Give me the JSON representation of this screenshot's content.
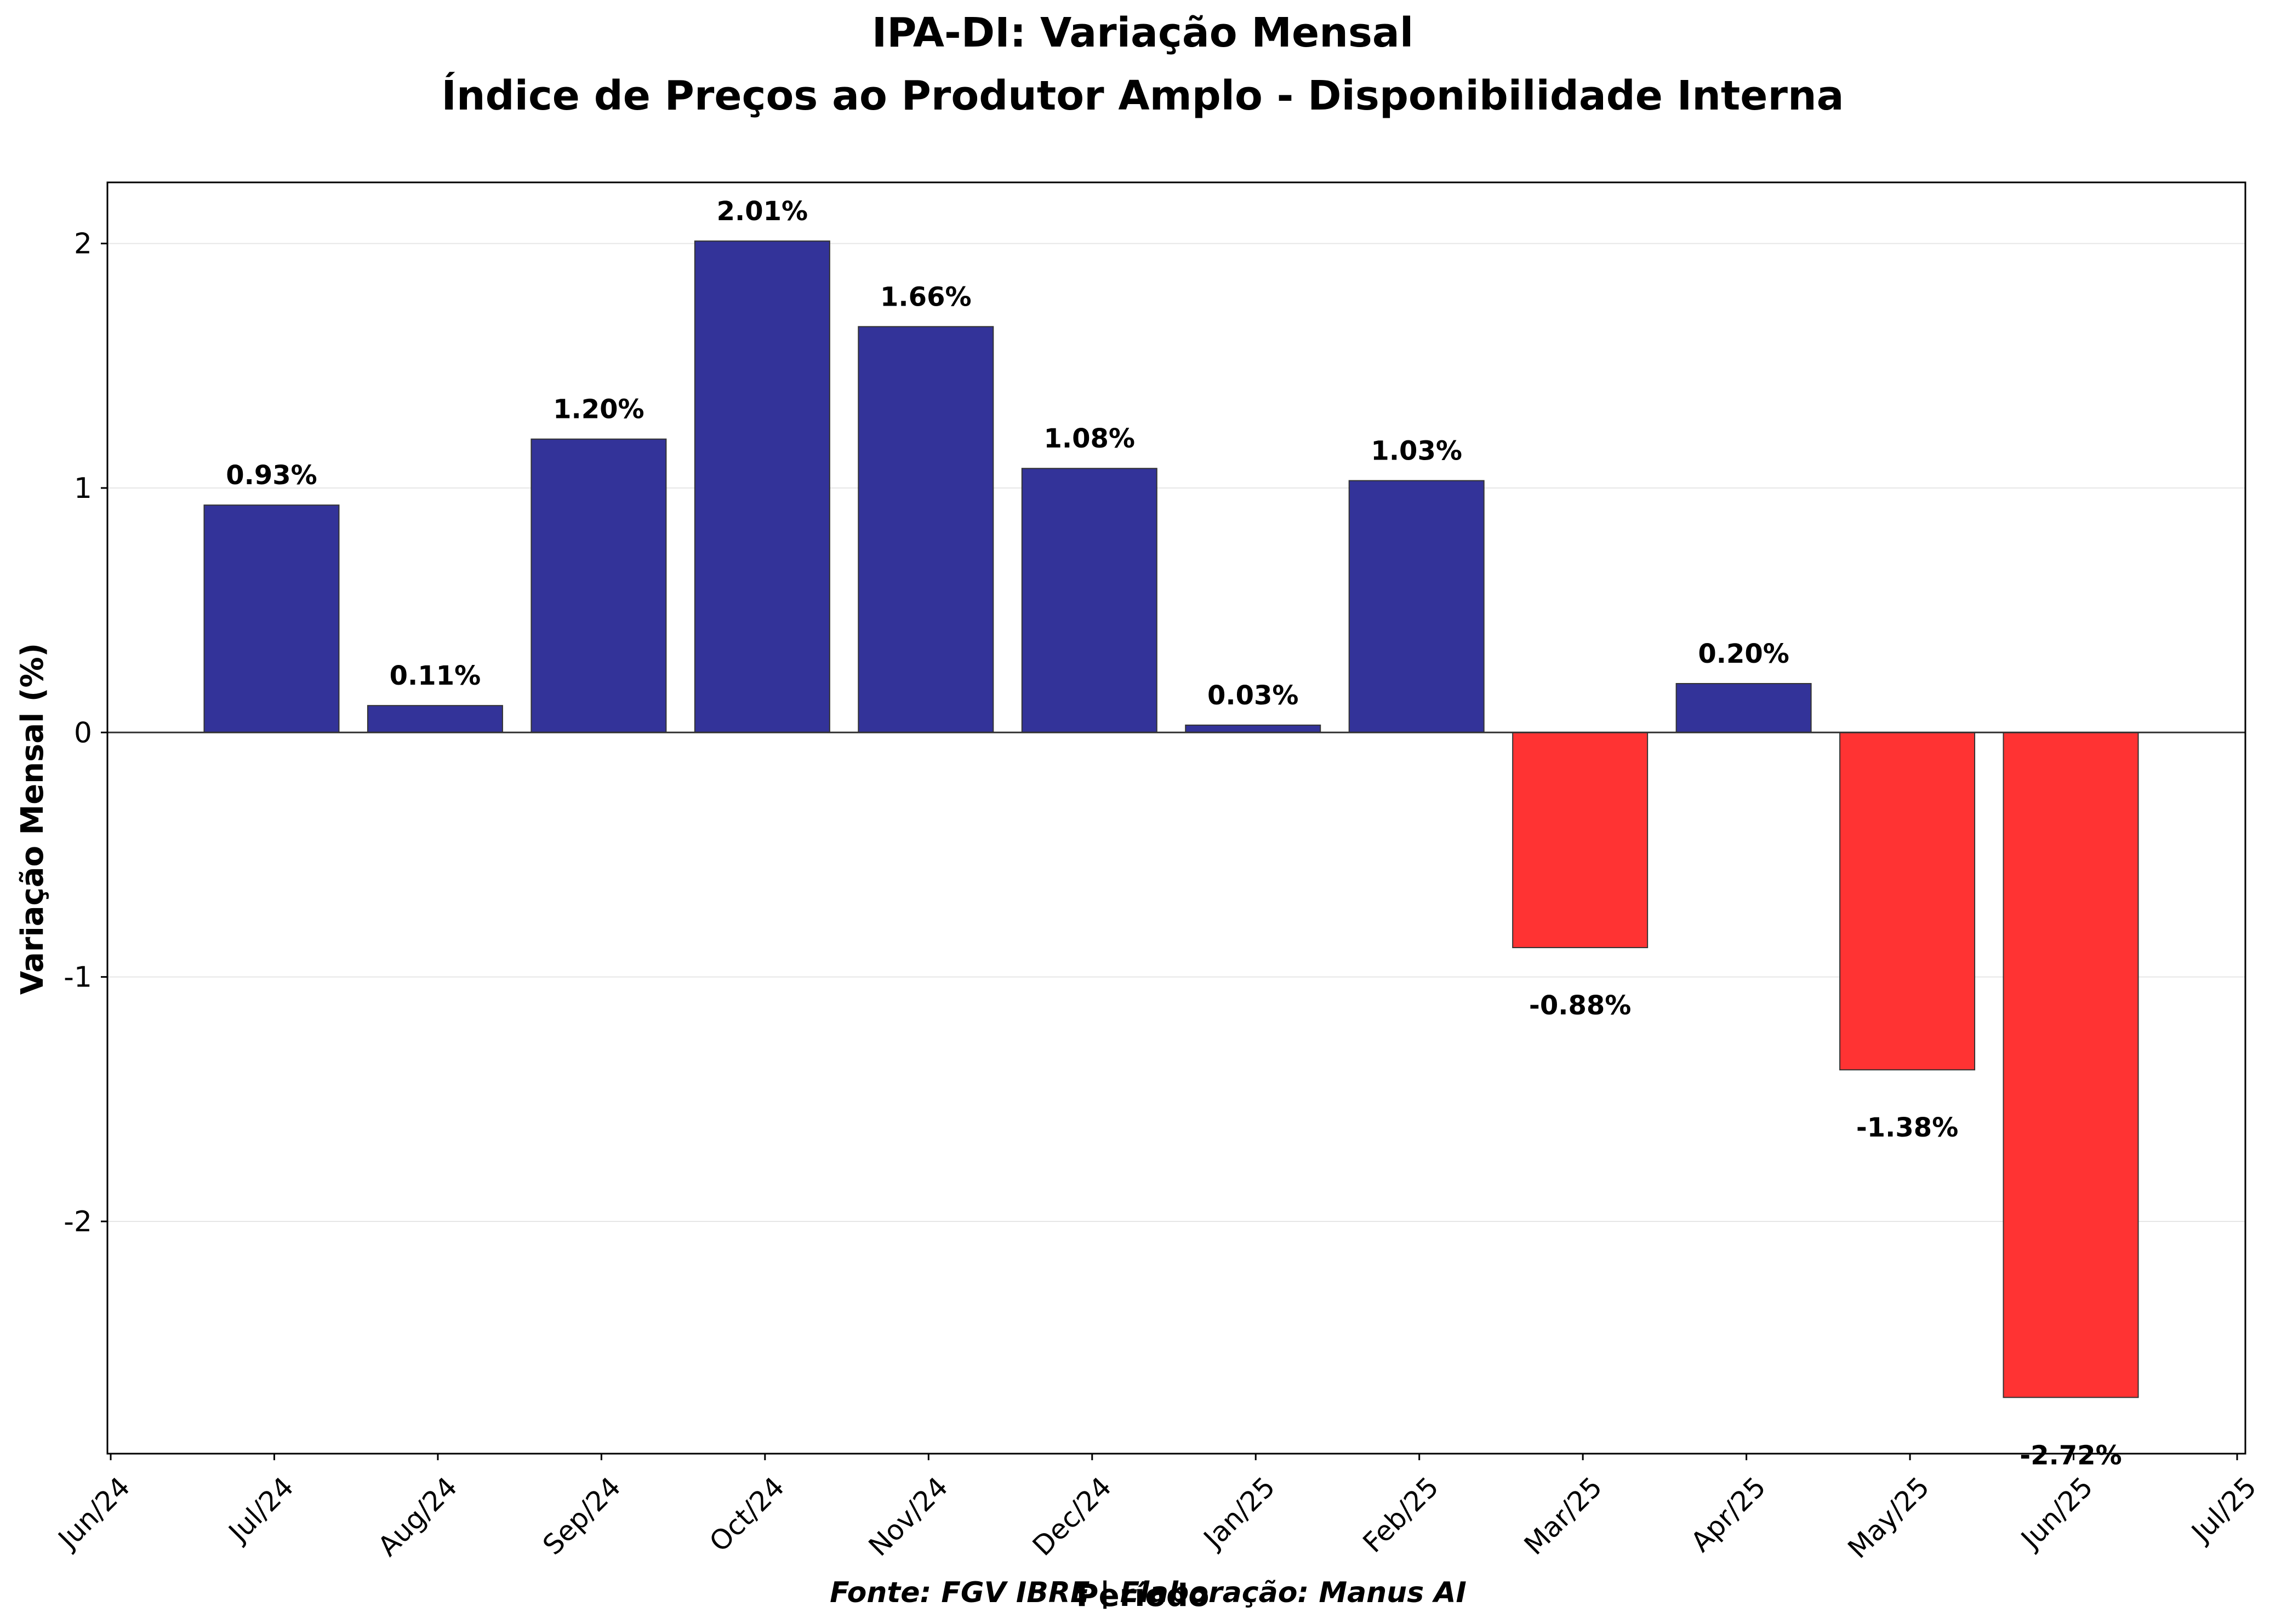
{
  "chart_data": {
    "type": "bar",
    "title": "IPA-DI: Variação Mensal",
    "subtitle": "Índice de Preços ao Produtor Amplo - Disponibilidade Interna",
    "xlabel": "Período",
    "ylabel": "Variação Mensal (%)",
    "footnote": "Fonte: FGV IBRE | Elaboração: Manus AI",
    "categories": [
      "Jul/24",
      "Aug/24",
      "Sep/24",
      "Oct/24",
      "Nov/24",
      "Dec/24",
      "Jan/25",
      "Feb/25",
      "Mar/25",
      "Apr/25",
      "May/25",
      "Jun/25"
    ],
    "values": [
      0.93,
      0.11,
      1.2,
      2.01,
      1.66,
      1.08,
      0.03,
      1.03,
      -0.88,
      0.2,
      -1.38,
      -2.72
    ],
    "data_labels": [
      "0.93%",
      "0.11%",
      "1.20%",
      "2.01%",
      "1.66%",
      "1.08%",
      "0.03%",
      "1.03%",
      "-0.88%",
      "0.20%",
      "-1.38%",
      "-2.72%"
    ],
    "x_tick_labels": [
      "Jun/24",
      "Jul/24",
      "Aug/24",
      "Sep/24",
      "Oct/24",
      "Nov/24",
      "Dec/24",
      "Jan/25",
      "Feb/25",
      "Mar/25",
      "Apr/25",
      "May/25",
      "Jun/25",
      "Jul/25"
    ],
    "y_ticks": [
      -2,
      -1,
      0,
      1,
      2
    ],
    "y_tick_labels": [
      "-2",
      "-1",
      "0",
      "1",
      "2"
    ],
    "ylim": [
      -2.95,
      2.25
    ],
    "grid": true,
    "positive_color": "#333399",
    "negative_color": "#ff3333"
  }
}
